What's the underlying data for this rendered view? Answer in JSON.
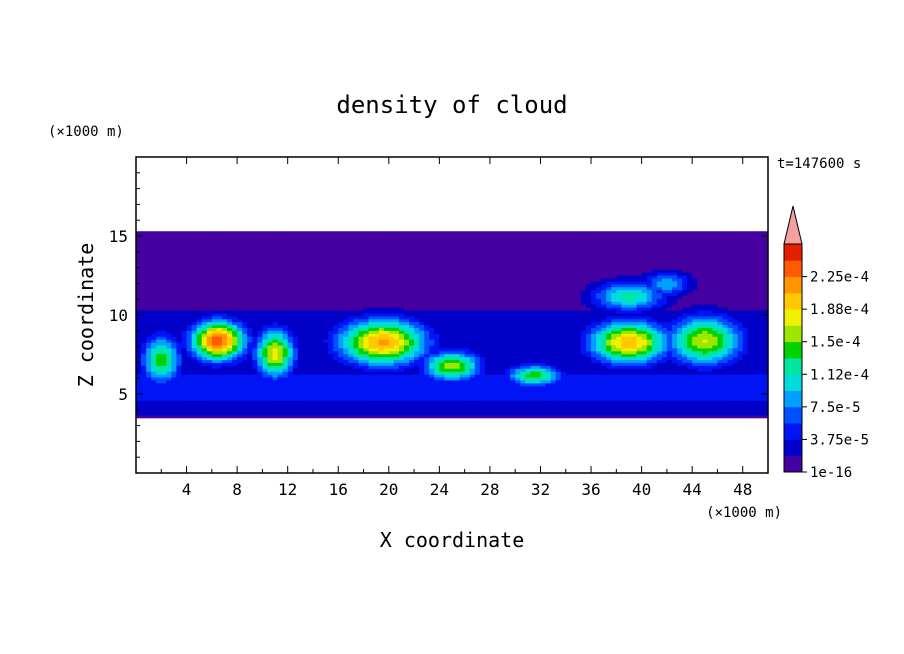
{
  "chart_data": {
    "type": "heatmap",
    "title": "density of cloud",
    "time_label": "t=147600 s",
    "xlabel": "X coordinate",
    "ylabel": "Z coordinate",
    "x_unit": "(×1000 m)",
    "y_unit": "(×1000 m)",
    "xlim": [
      0,
      50
    ],
    "ylim": [
      0,
      20
    ],
    "x_ticks": [
      4,
      8,
      12,
      16,
      20,
      24,
      28,
      32,
      36,
      40,
      44,
      48
    ],
    "y_ticks": [
      5,
      10,
      15
    ],
    "field_extent": {
      "x": [
        0,
        50
      ],
      "z": [
        3.5,
        15.3
      ]
    },
    "colorbar": {
      "levels": [
        0,
        1.875e-05,
        3.75e-05,
        5.625e-05,
        7.5e-05,
        9.375e-05,
        0.0001125,
        0.00013125,
        0.00015,
        0.00016875,
        0.0001875,
        0.00020625,
        0.000225,
        0.00024375
      ],
      "tick_labels": [
        "1e-16",
        "3.75e-5",
        "7.5e-5",
        "1.12e-4",
        "1.5e-4",
        "1.88e-4",
        "2.25e-4"
      ],
      "colors": [
        "#4400a0",
        "#0000c8",
        "#0014f5",
        "#0050ff",
        "#00a0ff",
        "#00dcdc",
        "#00e6a0",
        "#00d200",
        "#9ee600",
        "#f0f000",
        "#ffc800",
        "#ff9600",
        "#ff5a00",
        "#e61e00"
      ],
      "extend_max_color": "#f4a0a0"
    },
    "cells": [
      {
        "x": 6.5,
        "z": 8.4,
        "rx": 2.2,
        "rz": 1.3,
        "peak": 0.000238
      },
      {
        "x": 11.0,
        "z": 7.6,
        "rx": 1.6,
        "rz": 1.6,
        "peak": 0.00018
      },
      {
        "x": 2.0,
        "z": 7.2,
        "rx": 1.6,
        "rz": 1.6,
        "peak": 0.00014
      },
      {
        "x": 19.5,
        "z": 8.3,
        "rx": 3.6,
        "rz": 1.5,
        "peak": 0.00021
      },
      {
        "x": 25.0,
        "z": 6.8,
        "rx": 2.4,
        "rz": 1.0,
        "peak": 0.00016
      },
      {
        "x": 31.5,
        "z": 6.2,
        "rx": 2.2,
        "rz": 0.7,
        "peak": 0.000145
      },
      {
        "x": 39.0,
        "z": 8.3,
        "rx": 3.2,
        "rz": 1.4,
        "peak": 0.0002
      },
      {
        "x": 45.0,
        "z": 8.4,
        "rx": 3.0,
        "rz": 1.6,
        "peak": 0.00017
      },
      {
        "x": 39.0,
        "z": 11.2,
        "rx": 3.0,
        "rz": 1.0,
        "peak": 0.00012
      },
      {
        "x": 42.0,
        "z": 12.0,
        "rx": 2.0,
        "rz": 0.8,
        "peak": 9e-05
      }
    ]
  }
}
